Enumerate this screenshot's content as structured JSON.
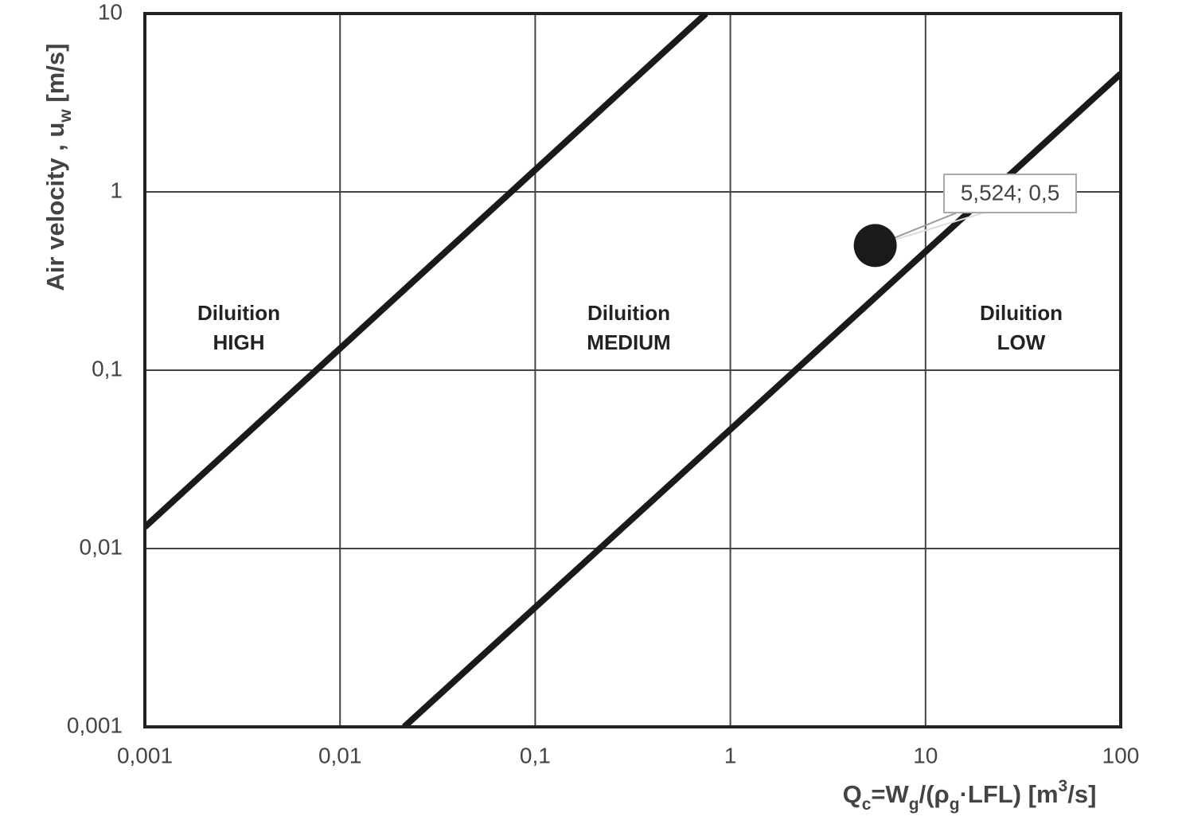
{
  "chart_data": {
    "type": "line",
    "log_x": true,
    "log_y": true,
    "grid": true,
    "x_label": [
      "Q",
      "c",
      "=W",
      "g",
      "/(ρ",
      "g",
      "·LFL) [m",
      "3",
      "/s]"
    ],
    "y_label": [
      "Air velocity , u",
      "w",
      " [m/s]"
    ],
    "xlim": [
      0.001,
      100
    ],
    "xticks": [
      {
        "value": 0.001,
        "label": "0,001"
      },
      {
        "value": 0.01,
        "label": "0,01"
      },
      {
        "value": 0.1,
        "label": "0,1"
      },
      1,
      10,
      100
    ],
    "ylim": [
      0.001,
      10
    ],
    "yticks": [
      {
        "value": 0.001,
        "label": "0,001"
      },
      {
        "value": 0.01,
        "label": "0,01"
      },
      {
        "value": 0.1,
        "label": "0,1"
      },
      1,
      10
    ],
    "series": [
      {
        "color": "#1a1a1a",
        "x": [
          0.001,
          0.75
        ],
        "values": [
          0.0132,
          10
        ]
      },
      {
        "color": "#1a1a1a",
        "x": [
          0.0213,
          100
        ],
        "values": [
          0.001,
          4.6
        ]
      }
    ],
    "regions": [
      {
        "lines": [
          "Diluition",
          "HIGH"
        ]
      },
      {
        "lines": [
          "Diluition",
          "MEDIUM"
        ]
      },
      {
        "lines": [
          "Diluition",
          "LOW"
        ]
      }
    ],
    "point": {
      "x": 5.524,
      "y": 0.5,
      "label": "5,524; 0,5",
      "color": "#1a1a1a"
    }
  }
}
